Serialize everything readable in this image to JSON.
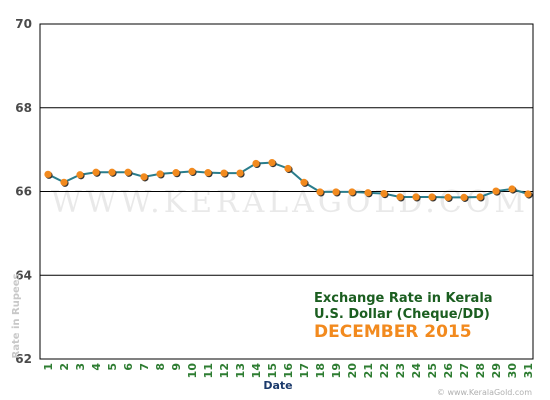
{
  "chart_data": {
    "type": "line",
    "title": "Exchange Rate in Kerala",
    "subtitle": "U.S. Dollar (Cheque/DD)",
    "period": "DECEMBER 2015",
    "xlabel": "Date",
    "ylabel": "Rate in Rupees",
    "ylim": [
      62,
      70
    ],
    "yticks": [
      62,
      64,
      66,
      68,
      70
    ],
    "grid": true,
    "x": [
      1,
      2,
      3,
      4,
      5,
      6,
      7,
      8,
      9,
      10,
      11,
      12,
      13,
      14,
      15,
      16,
      17,
      18,
      19,
      20,
      21,
      22,
      23,
      24,
      25,
      26,
      27,
      28,
      29,
      30,
      31
    ],
    "xticks": [
      "1",
      "2",
      "3",
      "4",
      "5",
      "6",
      "7",
      "8",
      "9",
      "10",
      "11",
      "12",
      "13",
      "14",
      "15",
      "16",
      "17",
      "18",
      "19",
      "20",
      "21",
      "22",
      "23",
      "24",
      "25",
      "26",
      "27",
      "28",
      "29",
      "30",
      "31"
    ],
    "series": [
      {
        "values": [
          66.41,
          66.22,
          66.4,
          66.46,
          66.46,
          66.46,
          66.35,
          66.42,
          66.45,
          66.48,
          66.45,
          66.44,
          66.44,
          66.67,
          66.69,
          66.55,
          66.22,
          65.99,
          65.99,
          65.99,
          65.97,
          65.95,
          65.87,
          65.87,
          65.87,
          65.86,
          65.86,
          65.87,
          66.01,
          66.06,
          65.94
        ],
        "line_color": "#2a7d8c",
        "marker_color": "#f28a1e"
      }
    ]
  },
  "watermark": "WWW.KERALAGOLD.COM",
  "credit": "© www.KeralaGold.com"
}
